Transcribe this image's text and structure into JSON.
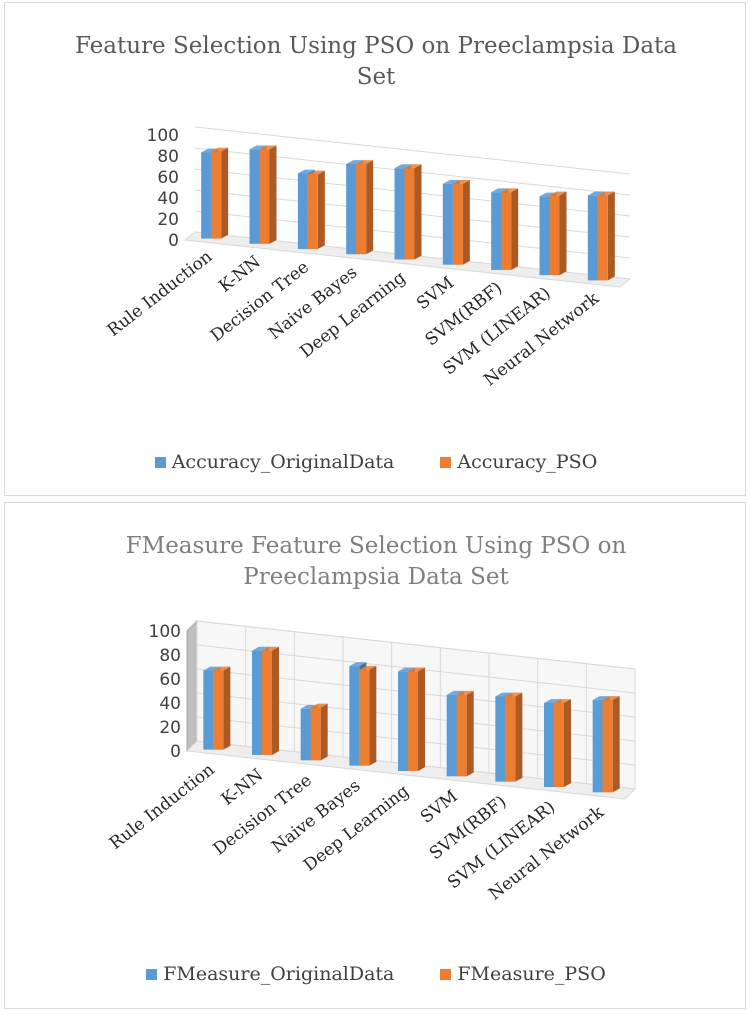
{
  "colors": {
    "original": "#5b9bd5",
    "pso": "#ed7d31"
  },
  "chart_data": [
    {
      "type": "bar",
      "title": "Feature Selection Using PSO on Preeclampsia Data Set",
      "title_lines": [
        "Feature Selection Using PSO on Preeclampsia Data",
        "Set"
      ],
      "categories": [
        "Rule Induction",
        "K-NN",
        "Decision Tree",
        "Naive Bayes",
        "Deep Learning",
        "SVM",
        "SVM(RBF)",
        "SVM (LINEAR)",
        "Neural Network"
      ],
      "series": [
        {
          "name": "Accuracy_OriginalData",
          "values": [
            82,
            90,
            72,
            86,
            87,
            77,
            74,
            75,
            81
          ]
        },
        {
          "name": "Accuracy_PSO",
          "values": [
            83,
            90,
            71,
            86,
            87,
            77,
            74,
            76,
            81
          ]
        }
      ],
      "yticks": [
        0,
        20,
        40,
        60,
        80,
        100
      ],
      "ylim": [
        0,
        100
      ],
      "grid": true,
      "legend": "bottom",
      "style": "3d-column"
    },
    {
      "type": "bar",
      "title": "FMeasure Feature Selection Using PSO on Preeclampsia Data Set",
      "title_lines": [
        "FMeasure Feature Selection Using PSO on",
        "Preeclampsia Data Set"
      ],
      "categories": [
        "Rule Induction",
        "K-NN",
        "Decision Tree",
        "Naive Bayes",
        "Deep Learning",
        "SVM",
        "SVM(RBF)",
        "SVM (LINEAR)",
        "Neural Network"
      ],
      "series": [
        {
          "name": "FMeasure_OriginalData",
          "values": [
            66,
            87,
            43,
            83,
            83,
            68,
            71,
            70,
            77
          ]
        },
        {
          "name": "FMeasure_PSO",
          "values": [
            66,
            87,
            44,
            80,
            83,
            68,
            71,
            70,
            77
          ]
        }
      ],
      "yticks": [
        0,
        20,
        40,
        60,
        80,
        100
      ],
      "ylim": [
        0,
        100
      ],
      "grid": true,
      "legend": "bottom",
      "style": "3d-column"
    }
  ]
}
